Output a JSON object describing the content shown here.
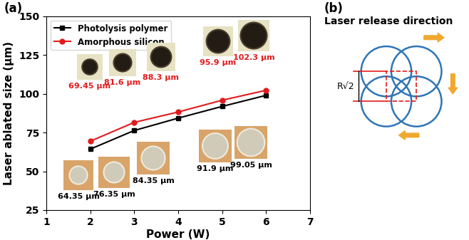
{
  "chart_data": {
    "type": "line",
    "panel_label": "(a)",
    "x_label": "Power (W)",
    "y_label": "Laser ablated size (μm)",
    "x": [
      2,
      3,
      4,
      5,
      6
    ],
    "series": [
      {
        "name": "Photolysis polymer",
        "color": "#000000",
        "marker": "square",
        "values": [
          64.35,
          76.35,
          84.35,
          91.9,
          99.05
        ],
        "value_labels": [
          "64.35 μm",
          "76.35 μm",
          "84.35 μm",
          "91.9 μm",
          "99.05 μm"
        ]
      },
      {
        "name": "Amorphous silicon",
        "color": "#e31a1c",
        "marker": "circle",
        "values": [
          69.45,
          81.6,
          88.3,
          95.9,
          102.3
        ],
        "value_labels": [
          "69.45 μm",
          "81.6 μm",
          "88.3 μm",
          "95.9 μm",
          "102.3 μm"
        ]
      }
    ],
    "xlim": [
      1,
      7
    ],
    "xticks": [
      1,
      2,
      3,
      4,
      5,
      6,
      7
    ],
    "ylim": [
      25,
      150
    ],
    "yticks": [
      25,
      50,
      75,
      100,
      125,
      150
    ],
    "legend": "upper left"
  },
  "diagram": {
    "panel_label": "(b)",
    "title": "Laser release direction",
    "dimension_label": "R√2"
  }
}
